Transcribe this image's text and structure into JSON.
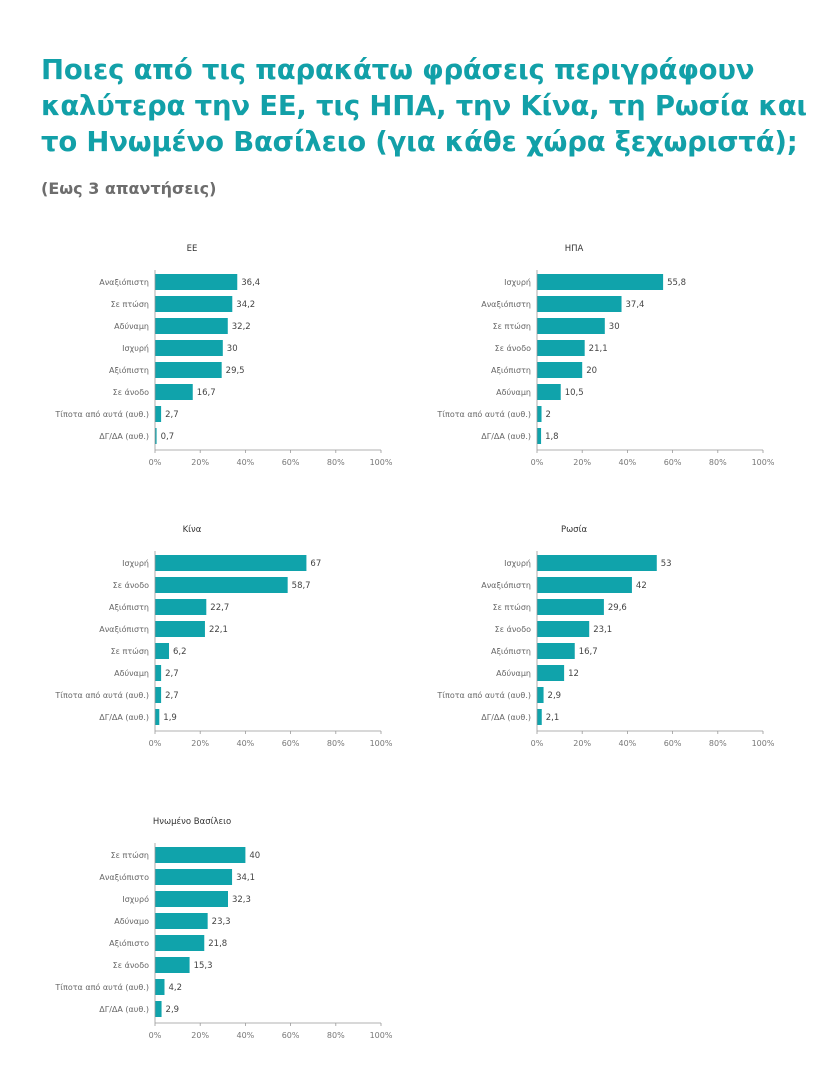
{
  "header": {
    "title_lines": [
      "Ποιες από τις παρακάτω φράσεις περιγράφουν",
      "καλύτερα την ΕΕ, τις ΗΠΑ, την Κίνα, τη Ρωσία και",
      "το Ηνωμένο Βασίλειο (για κάθε χώρα ξεχωριστά);"
    ],
    "subtitle": "(Εως 3 απαντήσεις)"
  },
  "colors": {
    "bar": "#10a3ab",
    "axis": "#999999",
    "title": "#12a0a8"
  },
  "chart_data": [
    {
      "type": "bar",
      "orientation": "horizontal",
      "title": "ΕΕ",
      "categories": [
        "Αναξιόπιστη",
        "Σε πτώση",
        "Αδύναμη",
        "Ισχυρή",
        "Αξιόπιστη",
        "Σε άνοδο",
        "Τίποτα από αυτά (αυθ.)",
        "ΔΓ/ΔΑ (αυθ.)"
      ],
      "values": [
        36.4,
        34.2,
        32.2,
        30,
        29.5,
        16.7,
        2.7,
        0.7
      ],
      "value_labels": [
        "36,4",
        "34,2",
        "32,2",
        "30",
        "29,5",
        "16,7",
        "2,7",
        "0,7"
      ],
      "xlim": [
        0,
        100
      ],
      "xticks": [
        "0%",
        "20%",
        "40%",
        "60%",
        "80%",
        "100%"
      ]
    },
    {
      "type": "bar",
      "orientation": "horizontal",
      "title": "ΗΠΑ",
      "categories": [
        "Ισχυρή",
        "Αναξιόπιστη",
        "Σε πτώση",
        "Σε άνοδο",
        "Αξιόπιστη",
        "Αδύναμη",
        "Τίποτα από αυτά (αυθ.)",
        "ΔΓ/ΔΑ (αυθ.)"
      ],
      "values": [
        55.8,
        37.4,
        30,
        21.1,
        20,
        10.5,
        2,
        1.8
      ],
      "value_labels": [
        "55,8",
        "37,4",
        "30",
        "21,1",
        "20",
        "10,5",
        "2",
        "1,8"
      ],
      "xlim": [
        0,
        100
      ],
      "xticks": [
        "0%",
        "20%",
        "40%",
        "60%",
        "80%",
        "100%"
      ]
    },
    {
      "type": "bar",
      "orientation": "horizontal",
      "title": "Κίνα",
      "categories": [
        "Ισχυρή",
        "Σε άνοδο",
        "Αξιόπιστη",
        "Αναξιόπιστη",
        "Σε πτώση",
        "Αδύναμη",
        "Τίποτα από αυτά (αυθ.)",
        "ΔΓ/ΔΑ (αυθ.)"
      ],
      "values": [
        67,
        58.7,
        22.7,
        22.1,
        6.2,
        2.7,
        2.7,
        1.9
      ],
      "value_labels": [
        "67",
        "58,7",
        "22,7",
        "22,1",
        "6,2",
        "2,7",
        "2,7",
        "1,9"
      ],
      "xlim": [
        0,
        100
      ],
      "xticks": [
        "0%",
        "20%",
        "40%",
        "60%",
        "80%",
        "100%"
      ]
    },
    {
      "type": "bar",
      "orientation": "horizontal",
      "title": "Ρωσία",
      "categories": [
        "Ισχυρή",
        "Αναξιόπιστη",
        "Σε πτώση",
        "Σε άνοδο",
        "Αξιόπιστη",
        "Αδύναμη",
        "Τίποτα από αυτά (αυθ.)",
        "ΔΓ/ΔΑ (αυθ.)"
      ],
      "values": [
        53,
        42,
        29.6,
        23.1,
        16.7,
        12,
        2.9,
        2.1
      ],
      "value_labels": [
        "53",
        "42",
        "29,6",
        "23,1",
        "16,7",
        "12",
        "2,9",
        "2,1"
      ],
      "xlim": [
        0,
        100
      ],
      "xticks": [
        "0%",
        "20%",
        "40%",
        "60%",
        "80%",
        "100%"
      ]
    },
    {
      "type": "bar",
      "orientation": "horizontal",
      "title": "Ηνωμένο Βασίλειο",
      "categories": [
        "Σε πτώση",
        "Αναξιόπιστο",
        "Ισχυρό",
        "Αδύναμο",
        "Αξιόπιστο",
        "Σε άνοδο",
        "Τίποτα από αυτά (αυθ.)",
        "ΔΓ/ΔΑ (αυθ.)"
      ],
      "values": [
        40,
        34.1,
        32.3,
        23.3,
        21.8,
        15.3,
        4.2,
        2.9
      ],
      "value_labels": [
        "40",
        "34,1",
        "32,3",
        "23,3",
        "21,8",
        "15,3",
        "4,2",
        "2,9"
      ],
      "xlim": [
        0,
        100
      ],
      "xticks": [
        "0%",
        "20%",
        "40%",
        "60%",
        "80%",
        "100%"
      ]
    }
  ]
}
